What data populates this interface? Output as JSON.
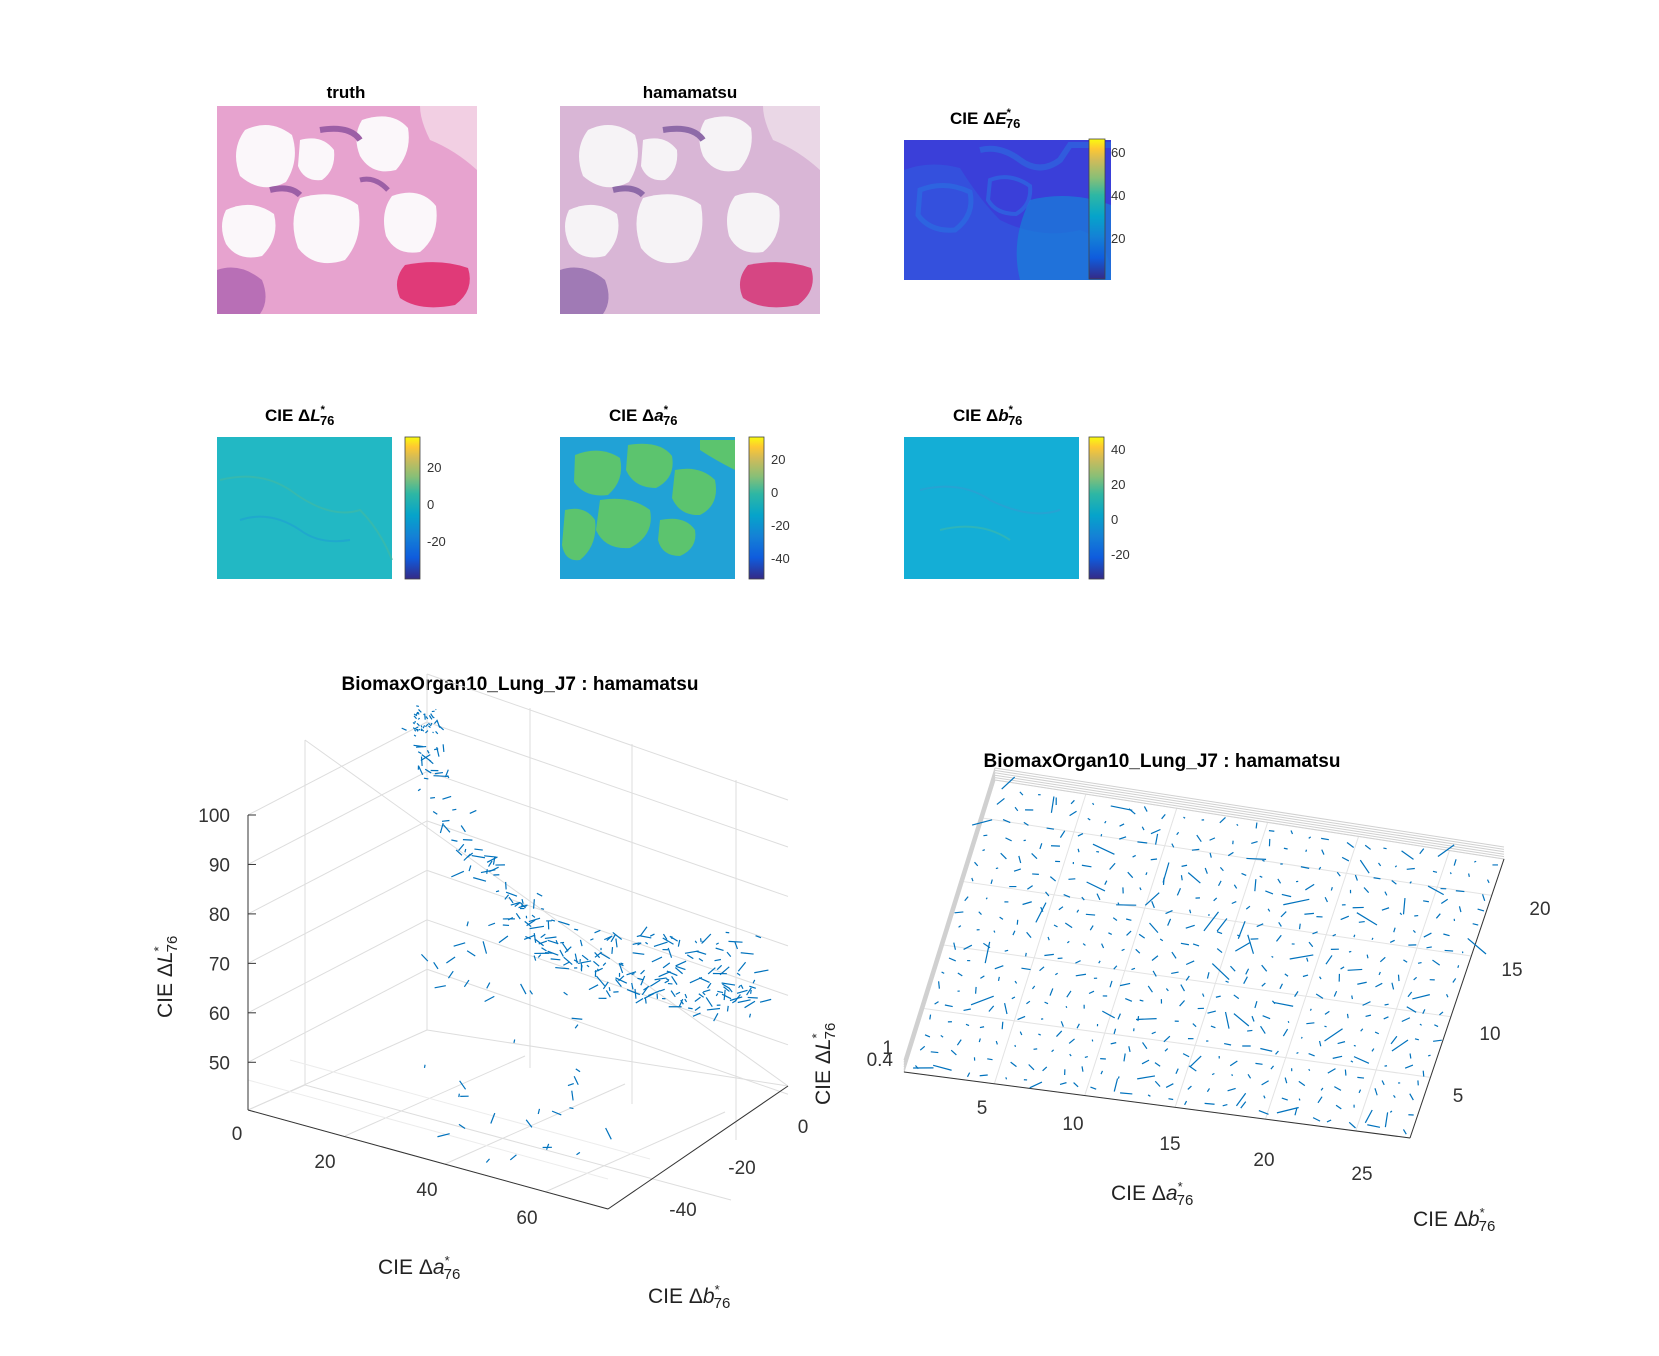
{
  "panels": [
    {
      "id": "truth",
      "title": "truth",
      "kind": "image"
    },
    {
      "id": "hamamatsu",
      "title": "hamamatsu",
      "kind": "image"
    },
    {
      "id": "dE",
      "title_prefix": "CIE Δ",
      "symbol": "E",
      "sup": "*",
      "sub": "76",
      "kind": "map",
      "colorbar_ticks": [
        "60",
        "40",
        "20"
      ],
      "range": [
        0,
        65
      ]
    },
    {
      "id": "dL",
      "title_prefix": "CIE Δ",
      "symbol": "L",
      "sup": "*",
      "sub": "76",
      "kind": "map",
      "colorbar_ticks": [
        "20",
        "0",
        "-20"
      ],
      "range": [
        -30,
        35
      ]
    },
    {
      "id": "da",
      "title_prefix": "CIE Δ",
      "symbol": "a",
      "sup": "*",
      "sub": "76",
      "kind": "map",
      "colorbar_ticks": [
        "20",
        "0",
        "-20",
        "-40"
      ],
      "range": [
        -50,
        33
      ]
    },
    {
      "id": "db",
      "title_prefix": "CIE Δ",
      "symbol": "b",
      "sup": "*",
      "sub": "76",
      "kind": "map",
      "colorbar_ticks": [
        "40",
        "20",
        "0",
        "-20"
      ],
      "range": [
        -35,
        47
      ]
    }
  ],
  "chart_data": [
    {
      "type": "scatter",
      "subtype": "quiver3",
      "title": "BiomaxOrgan10_Lung_J7 : hamamatsu",
      "zlabel": {
        "prefix": "CIE Δ",
        "symbol": "L",
        "sup": "*",
        "sub": "76"
      },
      "xlabel": {
        "prefix": "CIE Δ",
        "symbol": "a",
        "sup": "*",
        "sub": "76"
      },
      "ylabel": {
        "prefix": "CIE Δ",
        "symbol": "b",
        "sup": "*",
        "sub": "76"
      },
      "z_ticks": [
        "100",
        "90",
        "80",
        "70",
        "60",
        "50"
      ],
      "x_ticks": [
        "0",
        "20",
        "40",
        "60"
      ],
      "y_ticks": [
        "0",
        "-20",
        "-40"
      ],
      "zlim": [
        45,
        105
      ],
      "xlim": [
        0,
        75
      ],
      "ylim": [
        -50,
        5
      ],
      "grid": true,
      "series_color": "#0072BD"
    },
    {
      "type": "scatter",
      "subtype": "quiver3",
      "title": "BiomaxOrgan10_Lung_J7 : hamamatsu",
      "zlabel": {
        "prefix": "CIE Δ",
        "symbol": "L",
        "sup": "*",
        "sub": "76"
      },
      "xlabel": {
        "prefix": "CIE Δ",
        "symbol": "a",
        "sup": "*",
        "sub": "76"
      },
      "ylabel": {
        "prefix": "CIE Δ",
        "symbol": "b",
        "sup": "*",
        "sub": "76"
      },
      "x_ticks": [
        "5",
        "10",
        "15",
        "20",
        "25"
      ],
      "y_ticks": [
        "5",
        "10",
        "15",
        "20"
      ],
      "z_ticks": [
        "1",
        "0.4"
      ],
      "xlim": [
        0,
        28
      ],
      "ylim": [
        1,
        22
      ],
      "grid": true,
      "series_color": "#0072BD"
    }
  ]
}
